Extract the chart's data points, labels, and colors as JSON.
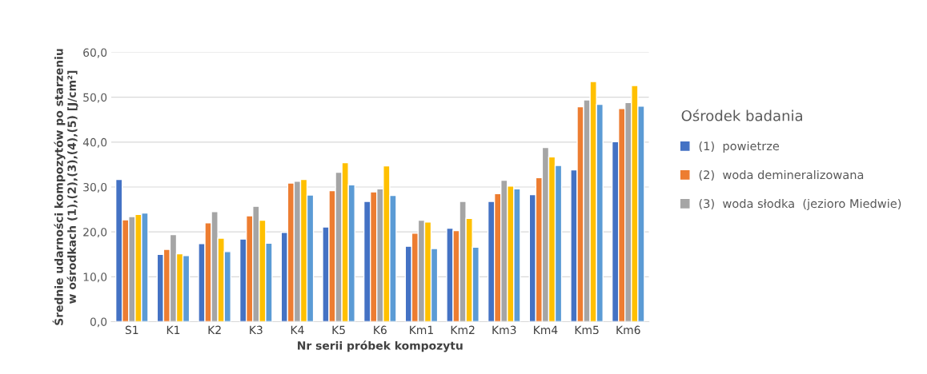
{
  "chart_data": {
    "type": "bar",
    "xlabel": "Nr serii próbek kompozytu",
    "ylabel": "Średnie udarności kompozytów po starzeniu\nw ośrodkach (1),(2),(3),(4),(5) [J/cm²]",
    "legend_title": "Ośrodek badania",
    "categories": [
      "S1",
      "K1",
      "K2",
      "K3",
      "K4",
      "K5",
      "K6",
      "Km1",
      "Km2",
      "Km3",
      "Km4",
      "Km5",
      "Km6"
    ],
    "series": [
      {
        "name": "(1)  powietrze",
        "color": "#4472c4",
        "values": [
          31.7,
          15.0,
          17.4,
          18.4,
          19.9,
          21.1,
          26.8,
          16.8,
          20.8,
          26.8,
          28.3,
          33.8,
          40.1
        ]
      },
      {
        "name": "(2)  woda demineralizowana",
        "color": "#ed7d31",
        "values": [
          22.7,
          16.1,
          22.0,
          23.6,
          30.9,
          29.2,
          28.9,
          19.7,
          20.3,
          28.5,
          32.1,
          47.9,
          47.5
        ]
      },
      {
        "name": "(3)  woda słodka  (jezioro Miedwie)",
        "color": "#a5a5a5",
        "values": [
          23.4,
          19.4,
          24.5,
          25.7,
          31.3,
          33.3,
          29.6,
          22.6,
          26.8,
          31.5,
          38.8,
          49.4,
          48.8
        ]
      },
      {
        "color": "#ffc000",
        "values": [
          23.9,
          15.1,
          18.6,
          22.6,
          31.7,
          35.4,
          34.7,
          22.2,
          23.0,
          30.2,
          36.7,
          53.5,
          52.6
        ]
      },
      {
        "color": "#5b9bd5",
        "values": [
          24.2,
          14.7,
          15.6,
          17.5,
          28.2,
          30.5,
          28.1,
          16.3,
          16.6,
          29.6,
          34.8,
          48.4,
          48.0
        ]
      }
    ],
    "ylim": [
      0,
      60
    ],
    "yticks": [
      {
        "value": 0,
        "label": "0,0"
      },
      {
        "value": 10,
        "label": "10,0"
      },
      {
        "value": 20,
        "label": "20,0"
      },
      {
        "value": 30,
        "label": "30,0"
      },
      {
        "value": 40,
        "label": "40,0"
      },
      {
        "value": 50,
        "label": "50,0"
      },
      {
        "value": 60,
        "label": "60,0"
      }
    ],
    "grid": "y",
    "legend": "right"
  }
}
